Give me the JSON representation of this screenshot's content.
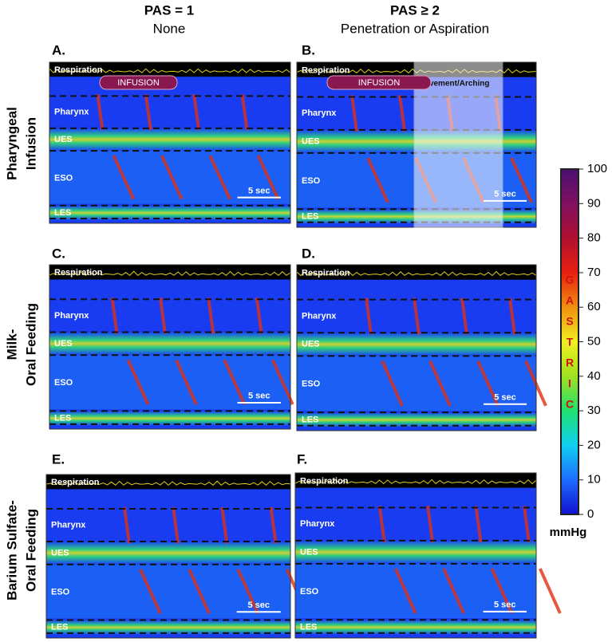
{
  "columns": [
    {
      "title": "PAS = 1",
      "subtitle": "None"
    },
    {
      "title": "PAS ≥ 2",
      "subtitle": "Penetration or Aspiration"
    }
  ],
  "rows": [
    {
      "lines": [
        "Pharyngeal",
        "Infusion"
      ]
    },
    {
      "lines": [
        "Milk-",
        "Oral Feeding"
      ]
    },
    {
      "lines": [
        "Barium Sulfate-",
        "Oral Feeding"
      ]
    }
  ],
  "panels": [
    {
      "letter": "A.",
      "respiration": "Respiration",
      "pharynx": "Pharynx",
      "ues": "UES",
      "eso": "ESO",
      "les": "LES",
      "scale": "5 sec",
      "infusion": "INFUSION"
    },
    {
      "letter": "B.",
      "respiration": "Respiration",
      "pharynx": "Pharynx",
      "ues": "UES",
      "eso": "ESO",
      "les": "LES",
      "scale": "5 sec",
      "infusion": "INFUSION",
      "overlay": "Movement/Arching"
    },
    {
      "letter": "C.",
      "respiration": "Respiration",
      "pharynx": "Pharynx",
      "ues": "UES",
      "eso": "ESO",
      "les": "LES",
      "scale": "5 sec"
    },
    {
      "letter": "D.",
      "respiration": "Respiration",
      "pharynx": "Pharynx",
      "ues": "UES",
      "eso": "ESO",
      "les": "LES",
      "scale": "5 sec"
    },
    {
      "letter": "E.",
      "respiration": "Respiration",
      "pharynx": "Pharynx",
      "ues": "UES",
      "eso": "ESO",
      "les": "LES",
      "scale": "5 sec"
    },
    {
      "letter": "F.",
      "respiration": "Respiration",
      "pharynx": "Pharynx",
      "ues": "UES",
      "eso": "ESO",
      "les": "LES",
      "scale": "5 sec"
    }
  ],
  "colorbar": {
    "ticks": [
      0,
      10,
      20,
      30,
      40,
      50,
      60,
      70,
      80,
      90,
      100
    ],
    "letters": [
      "G",
      "A",
      "S",
      "T",
      "R",
      "I",
      "C"
    ],
    "unit": "mmHg"
  }
}
